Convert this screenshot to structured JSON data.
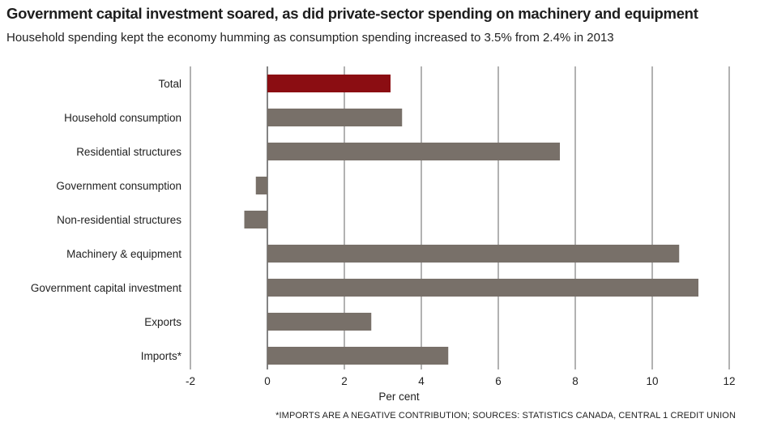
{
  "header": {
    "title": "Government capital investment soared, as did private-sector spending on machinery and equipment",
    "subtitle": "Household spending kept the economy humming as consumption spending increased to 3.5% from 2.4% in 2013"
  },
  "footnote": "*IMPORTS ARE A NEGATIVE CONTRIBUTION; SOURCES: STATISTICS CANADA, CENTRAL 1 CREDIT UNION",
  "colors": {
    "highlight": "#8b0d12",
    "bar": "#787069",
    "grid": "#555555"
  },
  "chart_data": {
    "type": "bar",
    "orientation": "horizontal",
    "categories": [
      "Total",
      "Household consumption",
      "Residential structures",
      "Government consumption",
      "Non-residential structures",
      "Machinery & equipment",
      "Government capital investment",
      "Exports",
      "Imports*"
    ],
    "values": [
      3.2,
      3.5,
      7.6,
      -0.3,
      -0.6,
      10.7,
      11.2,
      2.7,
      4.7
    ],
    "highlight_index": 0,
    "xlabel": "Per cent",
    "xlim": [
      -2,
      12
    ],
    "xticks": [
      -2,
      0,
      2,
      4,
      6,
      8,
      10,
      12
    ],
    "grid": true
  }
}
